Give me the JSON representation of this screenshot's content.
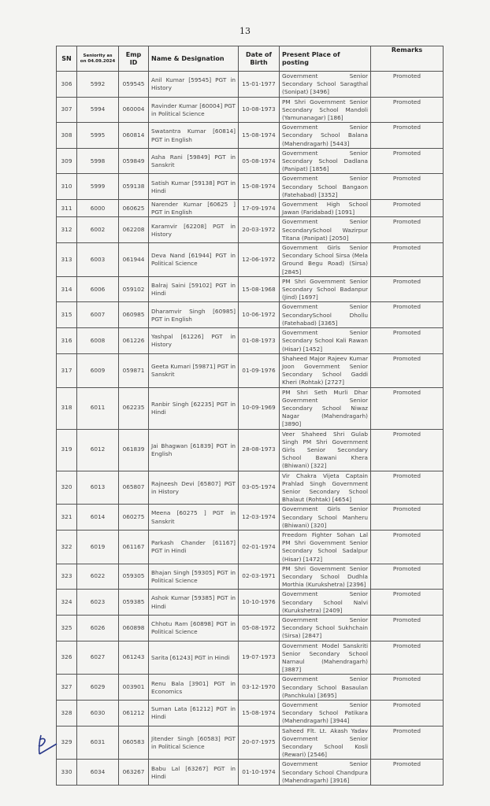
{
  "page_number": "13",
  "table": {
    "headers": {
      "sn": "SN",
      "seniority": "Seniority as on 04.09.2024",
      "emp_id": "Emp ID",
      "name": "Name & Designation",
      "dob": "Date of Birth",
      "place": "Present Place of posting",
      "remarks": "Remarks"
    },
    "rows": [
      {
        "sn": "306",
        "seniority": "5992",
        "emp_id": "059545",
        "name": "Anil Kumar [59545] PGT in History",
        "dob": "15-01-1977",
        "place": "Government Senior Secondary School Saragthal (Sonipat) [3496]",
        "remarks": "Promoted"
      },
      {
        "sn": "307",
        "seniority": "5994",
        "emp_id": "060004",
        "name": "Ravinder Kumar [60004] PGT in Political Science",
        "dob": "10-08-1973",
        "place": "PM Shri Government Senior Secondary School Mandoli (Yamunanagar) [186]",
        "remarks": "Promoted"
      },
      {
        "sn": "308",
        "seniority": "5995",
        "emp_id": "060814",
        "name": "Swatantra Kumar [60814] PGT in English",
        "dob": "15-08-1974",
        "place": "Government Senior Secondary School Balana (Mahendragarh) [5443]",
        "remarks": "Promoted"
      },
      {
        "sn": "309",
        "seniority": "5998",
        "emp_id": "059849",
        "name": "Asha Rani [59849] PGT in Sanskrit",
        "dob": "05-08-1974",
        "place": "Government Senior Secondary School Dadlana (Panipat) [1856]",
        "remarks": "Promoted"
      },
      {
        "sn": "310",
        "seniority": "5999",
        "emp_id": "059138",
        "name": "Satish Kumar [59138] PGT in Hindi",
        "dob": "15-08-1974",
        "place": "Government Senior Secondary School Bangaon (Fatehabad) [3352]",
        "remarks": "Promoted"
      },
      {
        "sn": "311",
        "seniority": "6000",
        "emp_id": "060625",
        "name": "Narender Kumar [60625 ] PGT in English",
        "dob": "17-09-1974",
        "place": "Government High School Jawan (Faridabad) [1091]",
        "remarks": "Promoted"
      },
      {
        "sn": "312",
        "seniority": "6002",
        "emp_id": "062208",
        "name": "Karamvir [62208] PGT in History",
        "dob": "20-03-1972",
        "place": "Government Senior SecondarySchool Wazirpur Titana (Panipat) [2050]",
        "remarks": "Promoted"
      },
      {
        "sn": "313",
        "seniority": "6003",
        "emp_id": "061944",
        "name": "Deva Nand [61944] PGT in Political Science",
        "dob": "12-06-1972",
        "place": "Government Girls Senior Secondary School Sirsa (Mela Ground Begu Road) (Sirsa) [2845]",
        "remarks": "Promoted"
      },
      {
        "sn": "314",
        "seniority": "6006",
        "emp_id": "059102",
        "name": "Balraj Saini [59102] PGT in Hindi",
        "dob": "15-08-1968",
        "place": "PM Shri Government Senior Secondary School Badanpur (Jind) [1697]",
        "remarks": "Promoted"
      },
      {
        "sn": "315",
        "seniority": "6007",
        "emp_id": "060985",
        "name": "Dharamvir Singh [60985] PGT in English",
        "dob": "10-06-1972",
        "place": "Government Senior SecondarySchool Dhollu (Fatehabad) [3365]",
        "remarks": "Promoted"
      },
      {
        "sn": "316",
        "seniority": "6008",
        "emp_id": "061226",
        "name": "Yashpal [61226] PGT in History",
        "dob": "01-08-1973",
        "place": "Government Senior Secondary School Kali Rawan (Hisar) [1452]",
        "remarks": "Promoted"
      },
      {
        "sn": "317",
        "seniority": "6009",
        "emp_id": "059871",
        "name": "Geeta Kumari [59871] PGT in Sanskrit",
        "dob": "01-09-1976",
        "place": "Shaheed Major Rajeev Kumar Joon Government Senior Secondary School Gaddi Kheri (Rohtak) [2727]",
        "remarks": "Promoted"
      },
      {
        "sn": "318",
        "seniority": "6011",
        "emp_id": "062235",
        "name": "Ranbir Singh [62235] PGT in Hindi",
        "dob": "10-09-1969",
        "place": "PM Shri Seth Murli Dhar Government Senior Secondary School Niwaz Nagar (Mahendragarh) [3890]",
        "remarks": "Promoted"
      },
      {
        "sn": "319",
        "seniority": "6012",
        "emp_id": "061839",
        "name": "Jai Bhagwan [61839] PGT in English",
        "dob": "28-08-1973",
        "place": "Veer Shaheed Shri Gulab Singh PM Shri Government Girls Senior Secondary School Bawani Khera (Bhiwani) [322]",
        "remarks": "Promoted"
      },
      {
        "sn": "320",
        "seniority": "6013",
        "emp_id": "065807",
        "name": "Rajneesh Devi [65807] PGT in History",
        "dob": "03-05-1974",
        "place": "Vir Chakra Vijeta Captain Prahlad Singh Government Senior Secondary School Bhalaut (Rohtak) [4654]",
        "remarks": "Promoted"
      },
      {
        "sn": "321",
        "seniority": "6014",
        "emp_id": "060275",
        "name": "Meena [60275 ] PGT in Sanskrit",
        "dob": "12-03-1974",
        "place": "Government Girls Senior Secondary School Manheru (Bhiwani) [320]",
        "remarks": "Promoted"
      },
      {
        "sn": "322",
        "seniority": "6019",
        "emp_id": "061167",
        "name": "Parkash Chander [61167] PGT in Hindi",
        "dob": "02-01-1974",
        "place": "Freedom Fighter Sohan Lal PM Shri Government Senior Secondary School Sadalpur (Hisar) [1472]",
        "remarks": "Promoted"
      },
      {
        "sn": "323",
        "seniority": "6022",
        "emp_id": "059305",
        "name": "Bhajan Singh [59305] PGT in Political Science",
        "dob": "02-03-1971",
        "place": "PM Shri Government Senior Secondary School Dudhla Morthia (Kurukshetra) [2396]",
        "remarks": "Promoted"
      },
      {
        "sn": "324",
        "seniority": "6023",
        "emp_id": "059385",
        "name": "Ashok Kumar [59385] PGT in Hindi",
        "dob": "10-10-1976",
        "place": "Government Senior Secondary School Nalvi (Kurukshetra) [2409]",
        "remarks": "Promoted"
      },
      {
        "sn": "325",
        "seniority": "6026",
        "emp_id": "060898",
        "name": "Chhotu Ram [60898] PGT in Political Science",
        "dob": "05-08-1972",
        "place": "Government Senior Secondary School Sukhchain (Sirsa) [2847]",
        "remarks": "Promoted"
      },
      {
        "sn": "326",
        "seniority": "6027",
        "emp_id": "061243",
        "name": "Sarita [61243] PGT in Hindi",
        "dob": "19-07-1973",
        "place": "Government Model Sanskriti Senior Secondary School Narnaul (Mahendragarh) [3887]",
        "remarks": "Promoted"
      },
      {
        "sn": "327",
        "seniority": "6029",
        "emp_id": "003901",
        "name": "Renu Bala [3901] PGT in Economics",
        "dob": "03-12-1970",
        "place": "Government Senior Secondary School Basaulan (Panchkula) [3695]",
        "remarks": "Promoted"
      },
      {
        "sn": "328",
        "seniority": "6030",
        "emp_id": "061212",
        "name": "Suman Lata [61212] PGT in Hindi",
        "dob": "15-08-1974",
        "place": "Government Senior Secondary School Patikara (Mahendragarh) [3944]",
        "remarks": "Promoted"
      },
      {
        "sn": "329",
        "seniority": "6031",
        "emp_id": "060583",
        "name": "Jitender Singh [60583] PGT in Political Science",
        "dob": "20-07-1975",
        "place": "Saheed Flt. Lt. Akash Yadav Government Senior Secondary School Kosli (Rewari) [2546]",
        "remarks": "Promoted"
      },
      {
        "sn": "330",
        "seniority": "6034",
        "emp_id": "063267",
        "name": "Babu Lal [63267] PGT in Hindi",
        "dob": "01-10-1974",
        "place": "Government Senior Secondary School Chandpura (Mahendragarh) [3916]",
        "remarks": "Promoted"
      }
    ]
  }
}
